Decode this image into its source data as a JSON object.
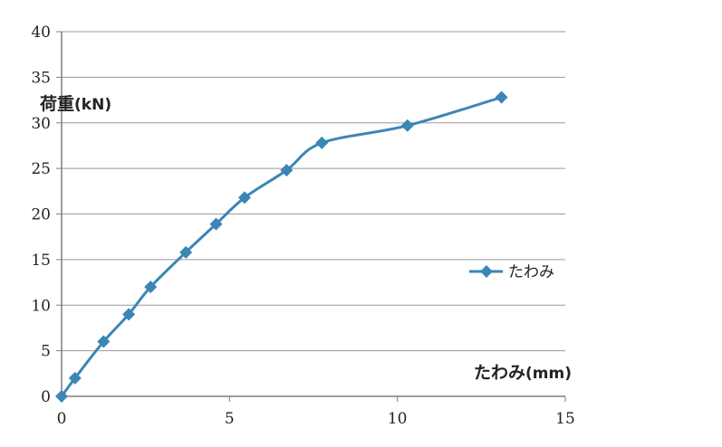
{
  "chart_data": {
    "type": "line",
    "title": "",
    "ylabel": {
      "main": "荷重",
      "unit": "(kN)"
    },
    "xlabel": {
      "main": "たわみ",
      "unit": "(mm)"
    },
    "xlim": [
      0,
      15
    ],
    "ylim": [
      0,
      40
    ],
    "xticks": [
      0,
      5,
      10,
      15
    ],
    "yticks": [
      0,
      5,
      10,
      15,
      20,
      25,
      30,
      35,
      40
    ],
    "grid": "horizontal",
    "legend_position": "right",
    "series": [
      {
        "name": "たわみ",
        "color": "#3b86b5",
        "marker": "diamond",
        "x": [
          0,
          0.4,
          1.25,
          2.0,
          2.65,
          3.7,
          4.6,
          5.45,
          6.7,
          7.75,
          10.3,
          13.1
        ],
        "y": [
          0,
          2,
          6,
          9,
          12,
          15.8,
          18.9,
          21.8,
          24.8,
          27.8,
          29.7,
          32.8
        ]
      }
    ]
  }
}
